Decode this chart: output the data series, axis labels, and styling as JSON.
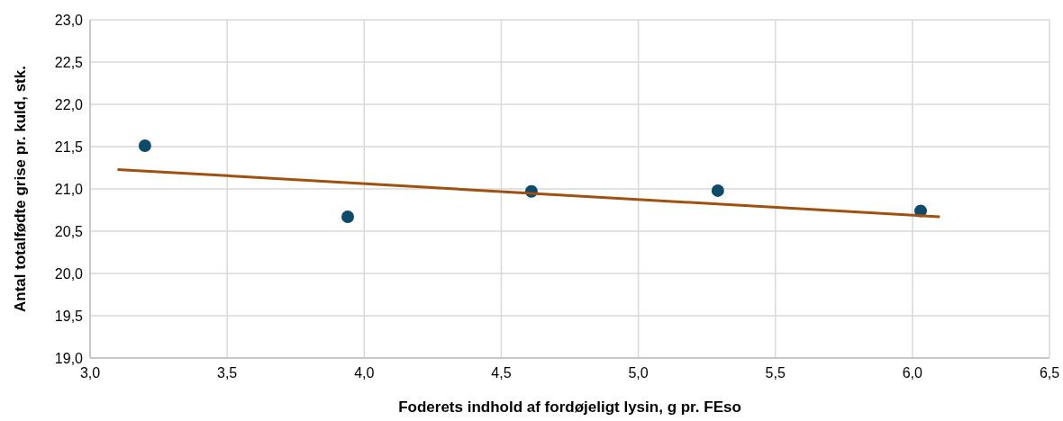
{
  "chart_data": {
    "type": "scatter",
    "xlabel": "Foderets indhold af fordøjeligt lysin, g pr. FEso",
    "ylabel": "Antal totalfødte grise pr. kuld, stk.",
    "xlim": [
      3.0,
      6.5
    ],
    "ylim": [
      19.0,
      23.0
    ],
    "xticks": [
      {
        "value": 3.0,
        "label": "3,0"
      },
      {
        "value": 3.5,
        "label": "3,5"
      },
      {
        "value": 4.0,
        "label": "4,0"
      },
      {
        "value": 4.5,
        "label": "4,5"
      },
      {
        "value": 5.0,
        "label": "5,0"
      },
      {
        "value": 5.5,
        "label": "5,5"
      },
      {
        "value": 6.0,
        "label": "6,0"
      },
      {
        "value": 6.5,
        "label": "6,5"
      }
    ],
    "yticks": [
      {
        "value": 19.0,
        "label": "19,0"
      },
      {
        "value": 19.5,
        "label": "19,5"
      },
      {
        "value": 20.0,
        "label": "20,0"
      },
      {
        "value": 20.5,
        "label": "20,5"
      },
      {
        "value": 21.0,
        "label": "21,0"
      },
      {
        "value": 21.5,
        "label": "21,5"
      },
      {
        "value": 22.0,
        "label": "22,0"
      },
      {
        "value": 22.5,
        "label": "22,5"
      },
      {
        "value": 23.0,
        "label": "23,0"
      }
    ],
    "grid": true,
    "marker": "circle",
    "series": [
      {
        "color": "#0e4a6a",
        "x": [
          3.2,
          3.94,
          4.61,
          5.29,
          6.03
        ],
        "values": [
          21.51,
          20.67,
          20.97,
          20.98,
          20.74
        ]
      },
      {
        "type": "line",
        "color": "#a0500f",
        "marker": "none",
        "x": [
          3.1,
          6.1
        ],
        "values": [
          21.23,
          20.67
        ]
      }
    ]
  }
}
